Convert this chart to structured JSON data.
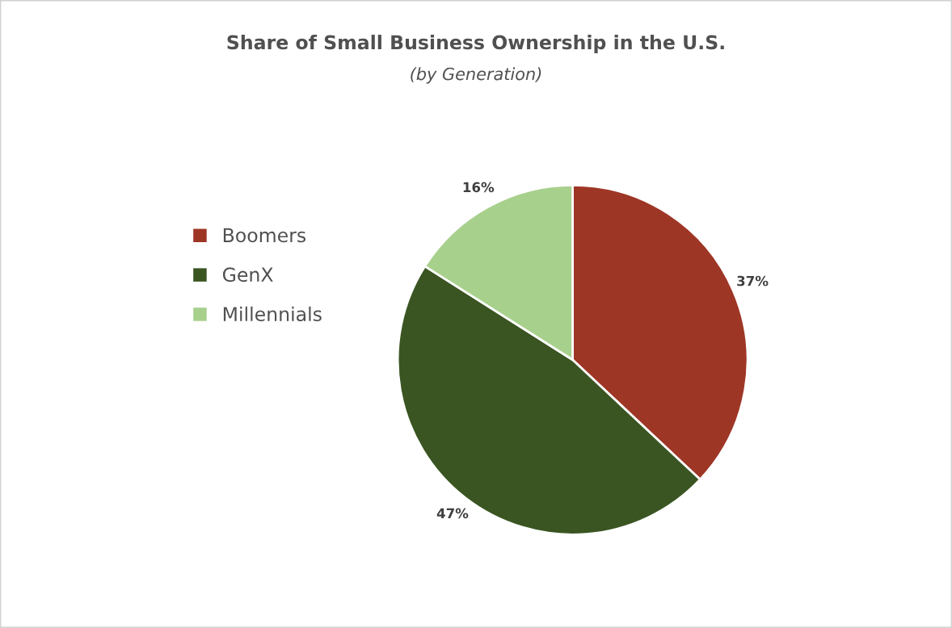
{
  "chart_data": {
    "type": "pie",
    "title": "Share of Small Business Ownership in the U.S.",
    "subtitle": "(by Generation)",
    "categories": [
      "Boomers",
      "GenX",
      "Millennials"
    ],
    "values": [
      37,
      47,
      16
    ],
    "colors": [
      "#9e3626",
      "#3a5522",
      "#a8d08d"
    ],
    "value_labels": [
      "37%",
      "47%",
      "16%"
    ],
    "legend": "left"
  }
}
